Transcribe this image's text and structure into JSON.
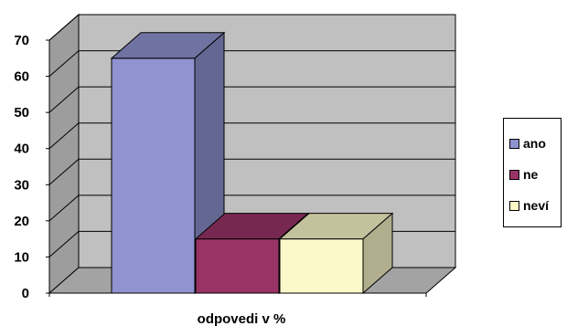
{
  "chart_data": {
    "type": "bar",
    "categories": [
      "odpovedi v %"
    ],
    "series": [
      {
        "name": "ano",
        "values": [
          65
        ],
        "color": "#8f93cf"
      },
      {
        "name": "ne",
        "values": [
          15
        ],
        "color": "#993366"
      },
      {
        "name": "neví",
        "values": [
          15
        ],
        "color": "#fbf9c9"
      }
    ],
    "title": "",
    "xlabel": "",
    "ylabel": "",
    "ylim": [
      0,
      70
    ],
    "yticks": [
      "0",
      "10",
      "20",
      "30",
      "40",
      "50",
      "60",
      "70"
    ],
    "grid": true,
    "three_d": true,
    "wall_color": "#c0c0c0",
    "legend_position": "right"
  }
}
